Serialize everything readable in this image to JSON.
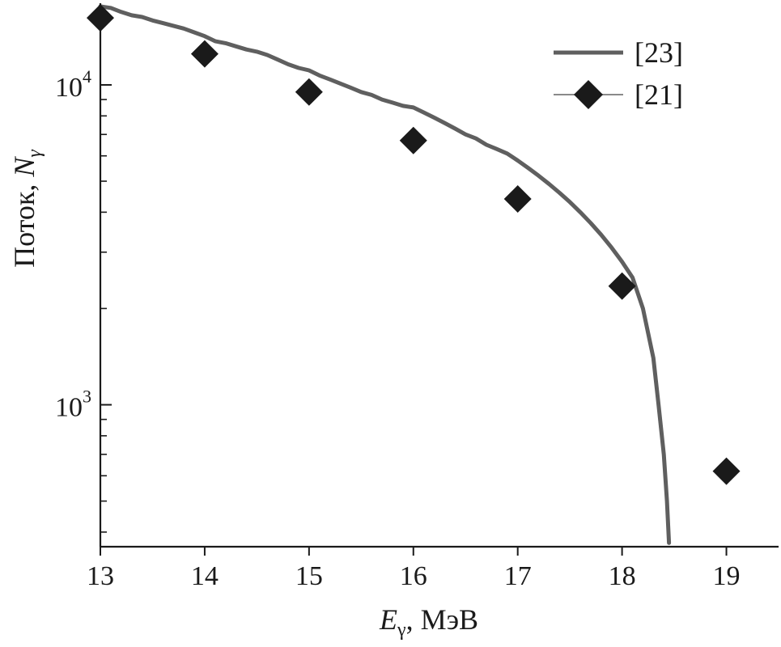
{
  "chart_data": {
    "type": "line",
    "y_scale": "log",
    "xlim": [
      13,
      19.5
    ],
    "ylim": [
      360,
      18000
    ],
    "xticks": [
      13,
      14,
      15,
      16,
      17,
      18,
      19
    ],
    "yticks_major": [
      {
        "value": 1000,
        "base": "10",
        "exp": "3"
      },
      {
        "value": 10000,
        "base": "10",
        "exp": "4"
      }
    ],
    "yticks_minor": [
      400,
      500,
      600,
      700,
      800,
      900,
      2000,
      3000,
      4000,
      5000,
      6000,
      7000,
      8000,
      9000
    ],
    "xlabel": {
      "main": "E",
      "sub": "γ",
      "rest": ", МэВ"
    },
    "ylabel": {
      "main": "Поток, ",
      "italic": "N",
      "sub": "γ"
    },
    "grid": false,
    "legend_position": "top-right",
    "series": [
      {
        "name": "[23]",
        "style": "line",
        "color": "#5f5f5f",
        "x": [
          13.0,
          13.1,
          13.2,
          13.3,
          13.4,
          13.5,
          13.6,
          13.7,
          13.8,
          13.9,
          14.0,
          14.1,
          14.2,
          14.3,
          14.4,
          14.5,
          14.6,
          14.7,
          14.8,
          14.9,
          15.0,
          15.1,
          15.2,
          15.3,
          15.4,
          15.5,
          15.6,
          15.7,
          15.8,
          15.9,
          16.0,
          16.1,
          16.2,
          16.3,
          16.4,
          16.5,
          16.6,
          16.7,
          16.8,
          16.9,
          17.0,
          17.1,
          17.2,
          17.3,
          17.4,
          17.5,
          17.6,
          17.7,
          17.8,
          17.9,
          18.0,
          18.1,
          18.2,
          18.3,
          18.35,
          18.4,
          18.43,
          18.45
        ],
        "y": [
          17600,
          17400,
          16900,
          16500,
          16300,
          15900,
          15600,
          15300,
          15000,
          14600,
          14200,
          13700,
          13500,
          13200,
          12900,
          12700,
          12400,
          12000,
          11600,
          11300,
          11100,
          10700,
          10400,
          10100,
          9800,
          9500,
          9300,
          9000,
          8800,
          8600,
          8500,
          8200,
          7900,
          7600,
          7300,
          7000,
          6800,
          6500,
          6300,
          6100,
          5800,
          5500,
          5200,
          4900,
          4600,
          4300,
          4000,
          3700,
          3400,
          3100,
          2800,
          2500,
          2000,
          1400,
          1000,
          700,
          500,
          370
        ]
      },
      {
        "name": "[21]",
        "style": "marker",
        "marker": "diamond",
        "color": "#1a1a1a",
        "x": [
          13,
          14,
          15,
          16,
          17,
          18,
          19
        ],
        "y": [
          16200,
          12500,
          9500,
          6700,
          4400,
          2350,
          620
        ]
      }
    ]
  }
}
